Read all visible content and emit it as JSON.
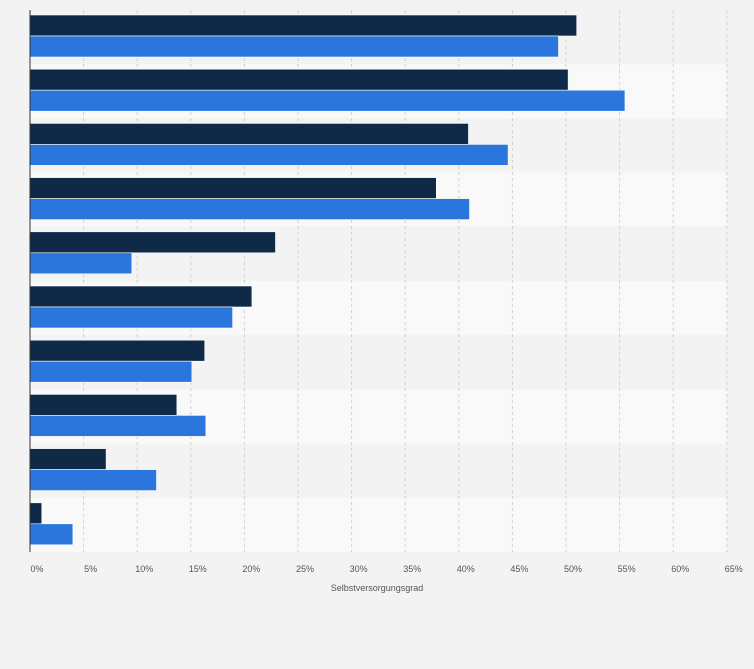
{
  "chart_data": {
    "type": "bar",
    "orientation": "horizontal",
    "xlabel": "Selbstversorgungsgrad",
    "xlim": [
      0,
      65
    ],
    "xticks": [
      "0%",
      "5%",
      "10%",
      "15%",
      "20%",
      "25%",
      "30%",
      "35%",
      "40%",
      "45%",
      "50%",
      "55%",
      "60%",
      "65%"
    ],
    "grid": "vertical dashed",
    "legend": "none",
    "series": [
      {
        "color": "#0f2a46",
        "values": [
          51.0,
          50.2,
          40.9,
          37.9,
          22.9,
          20.7,
          16.3,
          13.7,
          7.1,
          1.1
        ]
      },
      {
        "color": "#2a76dd",
        "values": [
          49.3,
          55.5,
          44.6,
          41.0,
          9.5,
          18.9,
          15.1,
          16.4,
          11.8,
          4.0
        ]
      }
    ]
  }
}
